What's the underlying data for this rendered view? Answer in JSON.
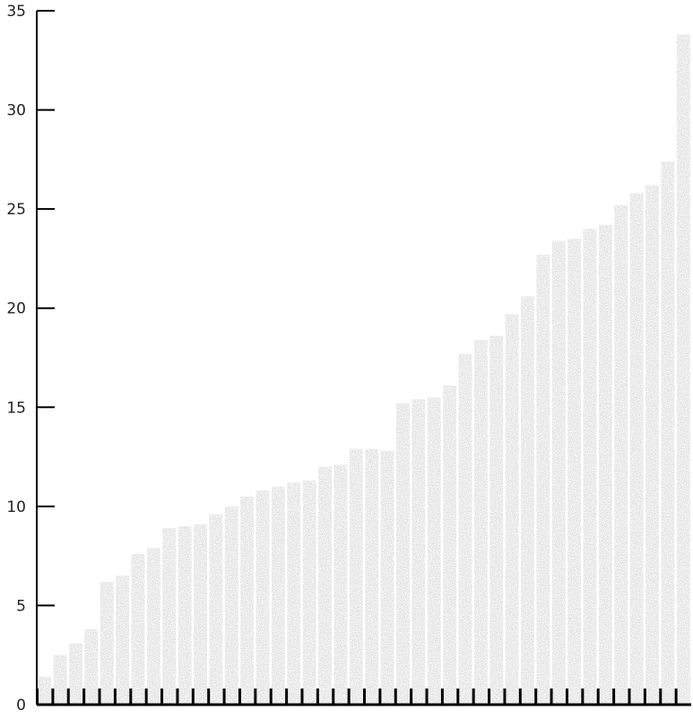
{
  "chart_data": {
    "type": "bar",
    "title": "",
    "xlabel": "",
    "ylabel": "",
    "ylim": [
      0,
      35
    ],
    "y_ticks": [
      "0",
      "5",
      "10",
      "15",
      "20",
      "25",
      "30",
      "35"
    ],
    "grid": false,
    "legend": "none",
    "bar_color": "#a3a3a3",
    "bar_texture": "stippled",
    "axis_color": "#000000",
    "values": [
      1.4,
      2.5,
      3.1,
      3.8,
      6.2,
      6.5,
      7.6,
      7.9,
      8.9,
      9.0,
      9.1,
      9.6,
      10.0,
      10.5,
      10.8,
      11.0,
      11.2,
      11.3,
      12.0,
      12.1,
      12.9,
      12.9,
      12.8,
      15.2,
      15.4,
      15.5,
      16.1,
      17.7,
      18.4,
      18.6,
      19.7,
      20.6,
      22.7,
      23.4,
      23.5,
      24.0,
      24.2,
      25.2,
      25.8,
      26.2,
      27.4,
      33.8
    ]
  }
}
